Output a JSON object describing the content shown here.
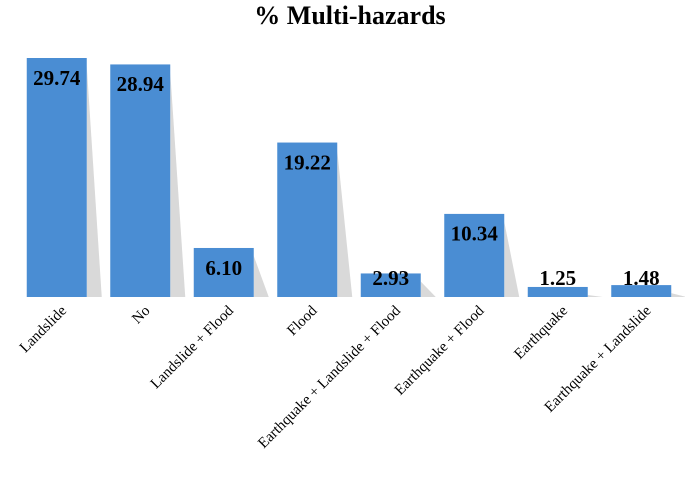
{
  "chart_data": {
    "type": "bar",
    "title": "% Multi-hazards",
    "categories": [
      "Landslide",
      "No",
      "Landslide + Flood",
      "Flood",
      "Earthquake + Landslide + Flood",
      "Earthquake + Flood",
      "Earthquake",
      "Earthquake + Landslide"
    ],
    "values": [
      29.74,
      28.94,
      6.1,
      19.22,
      2.93,
      10.34,
      1.25,
      1.48
    ],
    "value_labels": [
      "29.74",
      "28.94",
      "6.10",
      "19.22",
      "2.93",
      "10.34",
      "1.25",
      "1.48"
    ],
    "color": "#4a8dd3"
  }
}
